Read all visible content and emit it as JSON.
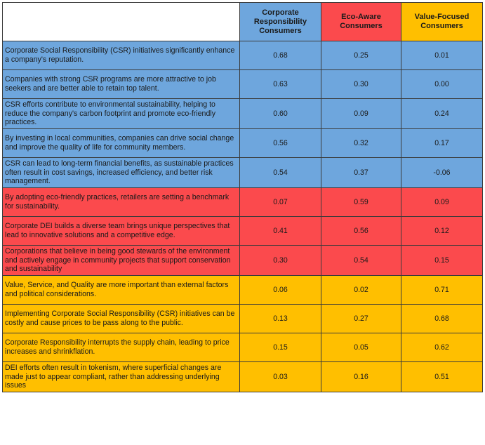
{
  "columns": [
    {
      "label": "Corporate Responsibility Consumers",
      "color": "#6ea6dd"
    },
    {
      "label": "Eco-Aware Consumers",
      "color": "#fb4a4d"
    },
    {
      "label": "Value-Focused Consumers",
      "color": "#ffbf00"
    }
  ],
  "rows": [
    {
      "statement": "Corporate Social Responsibility (CSR) initiatives significantly enhance a company's reputation.",
      "values": [
        "0.68",
        "0.25",
        "0.01"
      ],
      "group_color": "#6ea6dd"
    },
    {
      "statement": "Companies with strong CSR programs are more attractive to job seekers and are better able to retain top talent.",
      "values": [
        "0.63",
        "0.30",
        "0.00"
      ],
      "group_color": "#6ea6dd"
    },
    {
      "statement": "CSR efforts contribute to environmental sustainability, helping to reduce the company's carbon footprint and promote eco-friendly practices.",
      "values": [
        "0.60",
        "0.09",
        "0.24"
      ],
      "group_color": "#6ea6dd"
    },
    {
      "statement": "By investing in local communities, companies can drive social change and improve the quality of life for community members.",
      "values": [
        "0.56",
        "0.32",
        "0.17"
      ],
      "group_color": "#6ea6dd"
    },
    {
      "statement": "CSR can lead to long-term financial benefits, as sustainable practices often result in cost savings, increased efficiency, and better risk management.",
      "values": [
        "0.54",
        "0.37",
        "-0.06"
      ],
      "group_color": "#6ea6dd"
    },
    {
      "statement": "By adopting eco-friendly practices, retailers are setting a benchmark for sustainability.",
      "values": [
        "0.07",
        "0.59",
        "0.09"
      ],
      "group_color": "#fb4a4d"
    },
    {
      "statement": "Corporate DEI builds a diverse team brings unique perspectives that lead to innovative solutions and a competitive edge.",
      "values": [
        "0.41",
        "0.56",
        "0.12"
      ],
      "group_color": "#fb4a4d"
    },
    {
      "statement": "Corporations that believe in being good stewards of the environment and actively engage in community projects that support conservation and sustainability",
      "values": [
        "0.30",
        "0.54",
        "0.15"
      ],
      "group_color": "#fb4a4d"
    },
    {
      "statement": "Value, Service, and Quality are more important than external factors and political considerations.",
      "values": [
        "0.06",
        "0.02",
        "0.71"
      ],
      "group_color": "#ffbf00"
    },
    {
      "statement": "Implementing Corporate Social Responsibility (CSR) initiatives can be costly and cause prices to be pass along to the public.",
      "values": [
        "0.13",
        "0.27",
        "0.68"
      ],
      "group_color": "#ffbf00"
    },
    {
      "statement": "Corporate Responsibility interrupts the supply chain, leading to price increases and shrinkflation.",
      "values": [
        "0.15",
        "0.05",
        "0.62"
      ],
      "group_color": "#ffbf00"
    },
    {
      "statement": "DEI efforts often result in tokenism, where superficial changes are made just to appear compliant, rather than addressing underlying issues",
      "values": [
        "0.03",
        "0.16",
        "0.51"
      ],
      "group_color": "#ffbf00"
    }
  ]
}
